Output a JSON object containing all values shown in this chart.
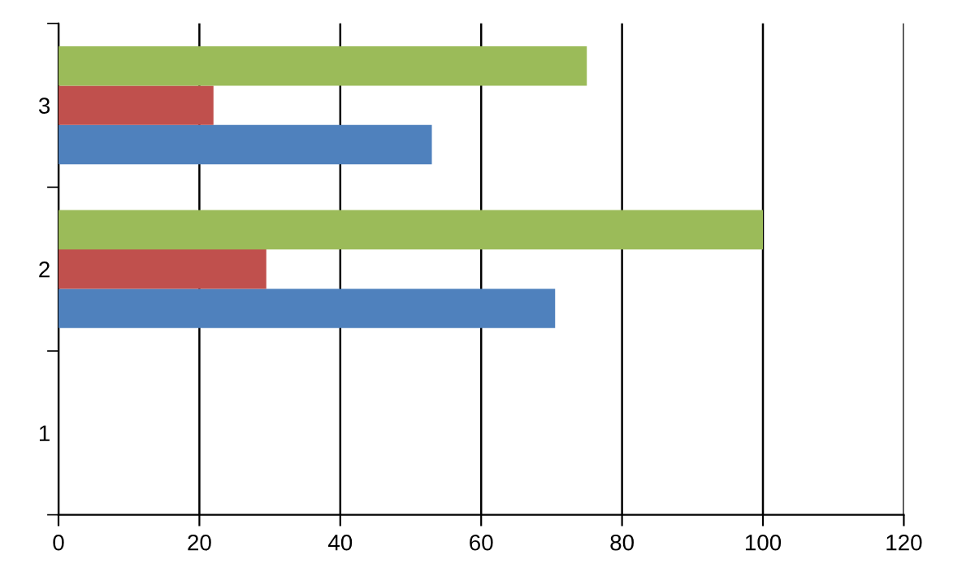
{
  "chart_data": {
    "type": "bar",
    "orientation": "horizontal",
    "categories": [
      "3",
      "2",
      "1"
    ],
    "series": [
      {
        "color": "#4f81bd",
        "values": [
          53,
          70.5,
          null
        ]
      },
      {
        "color": "#c0504d",
        "values": [
          22,
          29.5,
          null
        ]
      },
      {
        "color": "#9bbb59",
        "values": [
          75,
          100,
          null
        ]
      }
    ],
    "xlim": [
      0,
      120
    ],
    "xticks": [
      0,
      20,
      40,
      60,
      80,
      100,
      120
    ],
    "grid": "x",
    "legend": false
  }
}
